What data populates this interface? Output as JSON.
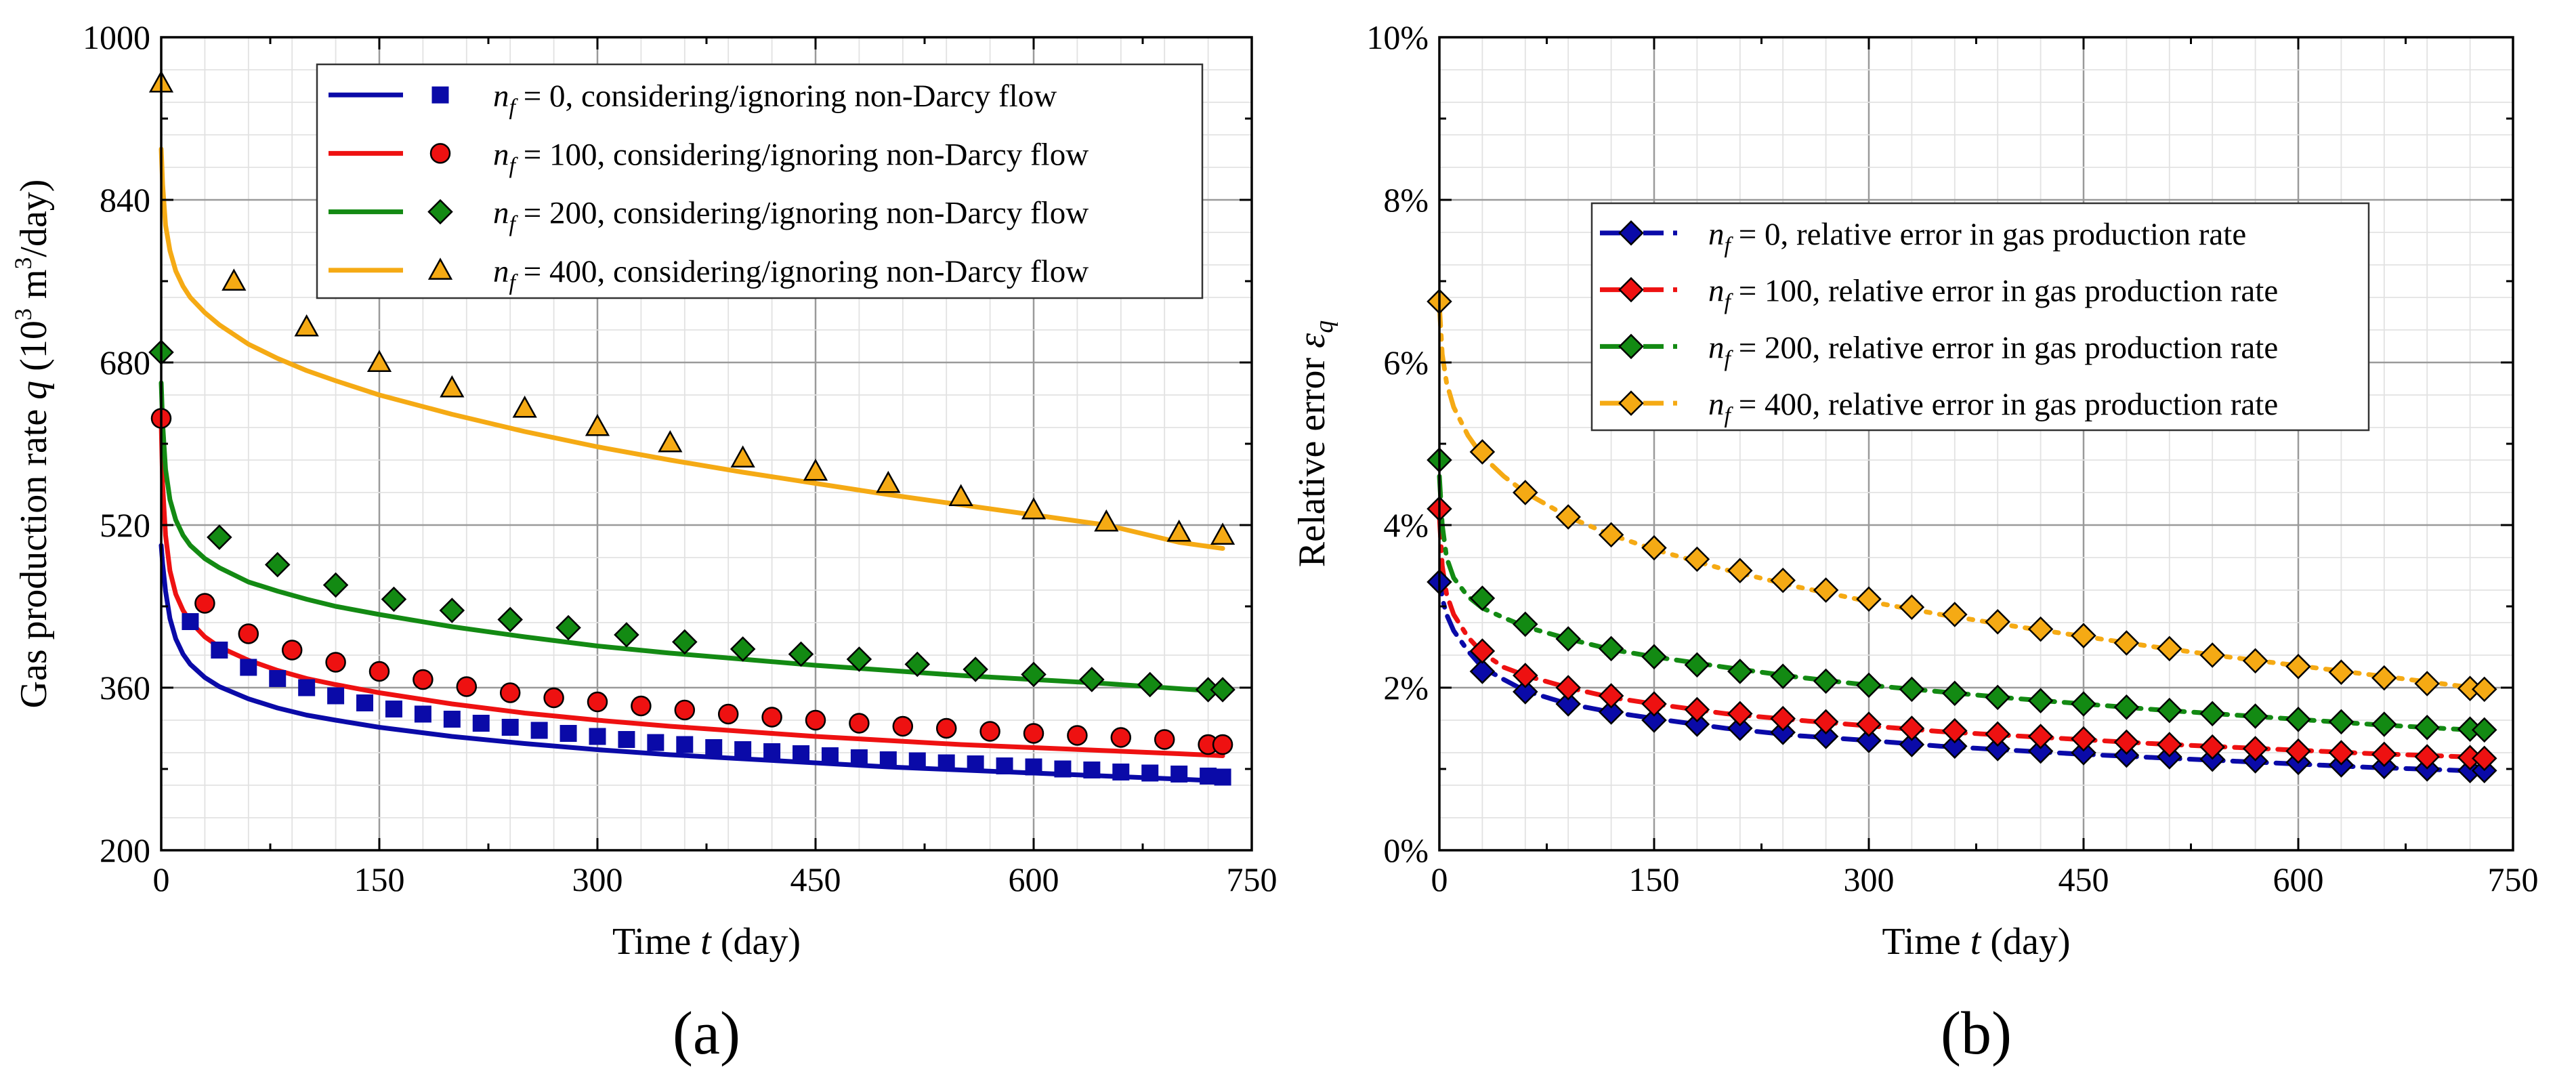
{
  "chart_data": [
    {
      "type": "line",
      "panel_label": "(a)",
      "xlabel": {
        "prefix": "Time ",
        "var": "t",
        "suffix": " (day)"
      },
      "ylabel": {
        "prefix": "Gas production rate ",
        "var": "q",
        "suffix": " (10",
        "sup": "3",
        "mid": " m",
        "sup2": "3",
        "end": "/day)"
      },
      "xlim": [
        0,
        750
      ],
      "ylim": [
        200,
        1000
      ],
      "xticks": [
        "0",
        "150",
        "300",
        "450",
        "600",
        "750"
      ],
      "yticks": [
        "200",
        "360",
        "520",
        "680",
        "840",
        "1000"
      ],
      "grid": true,
      "legend_position": "top-right",
      "series": [
        {
          "nf": "0",
          "legend_text": "= 0,     considering/ignoring non-Darcy flow",
          "color": "#0a0aa8",
          "marker": "square",
          "line_x": [
            0,
            1,
            3,
            6,
            10,
            15,
            20,
            30,
            40,
            60,
            80,
            100,
            120,
            150,
            200,
            250,
            300,
            350,
            400,
            450,
            500,
            550,
            600,
            650,
            700,
            730
          ],
          "line_y": [
            500,
            482,
            455,
            428,
            408,
            393,
            383,
            370,
            361,
            349,
            340,
            333,
            328,
            321,
            312,
            305,
            299,
            294,
            290,
            286,
            282,
            279,
            276,
            273,
            270,
            268
          ],
          "points_x": [
            20,
            40,
            60,
            80,
            100,
            120,
            140,
            160,
            180,
            200,
            220,
            240,
            260,
            280,
            300,
            320,
            340,
            360,
            380,
            400,
            420,
            440,
            460,
            480,
            500,
            520,
            540,
            560,
            580,
            600,
            620,
            640,
            660,
            680,
            700,
            720,
            730
          ],
          "points_y": [
            425,
            397,
            380,
            369,
            360,
            352,
            345,
            339,
            334,
            329,
            325,
            321,
            318,
            315,
            312,
            309,
            306,
            304,
            301,
            299,
            297,
            295,
            293,
            291,
            289,
            288,
            286,
            285,
            283,
            282,
            280,
            279,
            277,
            276,
            275,
            273,
            272
          ]
        },
        {
          "nf": "100",
          "legend_text": "= 100, considering/ignoring non-Darcy flow",
          "color": "#ee1111",
          "marker": "circle",
          "line_x": [
            0,
            1,
            3,
            6,
            10,
            15,
            20,
            30,
            40,
            60,
            80,
            100,
            120,
            150,
            200,
            250,
            300,
            350,
            400,
            450,
            500,
            550,
            600,
            650,
            700,
            730
          ],
          "line_y": [
            620,
            560,
            510,
            475,
            452,
            436,
            425,
            410,
            400,
            387,
            377,
            369,
            363,
            355,
            344,
            335,
            328,
            322,
            317,
            312,
            308,
            304,
            301,
            298,
            295,
            293
          ],
          "points_x": [
            0,
            30,
            60,
            90,
            120,
            150,
            180,
            210,
            240,
            270,
            300,
            330,
            360,
            390,
            420,
            450,
            480,
            510,
            540,
            570,
            600,
            630,
            660,
            690,
            720,
            730
          ],
          "points_y": [
            625,
            443,
            413,
            397,
            385,
            376,
            368,
            361,
            355,
            350,
            346,
            342,
            338,
            334,
            331,
            328,
            325,
            322,
            320,
            317,
            315,
            313,
            311,
            309,
            304,
            304
          ]
        },
        {
          "nf": "200",
          "legend_text": "= 200, considering/ignoring non-Darcy flow",
          "color": "#138a13",
          "marker": "diamond",
          "line_x": [
            0,
            1,
            3,
            6,
            10,
            15,
            20,
            30,
            40,
            60,
            80,
            100,
            120,
            150,
            200,
            250,
            300,
            350,
            400,
            450,
            500,
            550,
            600,
            650,
            700,
            730
          ],
          "line_y": [
            660,
            620,
            575,
            545,
            525,
            510,
            500,
            487,
            478,
            464,
            455,
            447,
            440,
            432,
            420,
            410,
            401,
            394,
            388,
            382,
            377,
            372,
            368,
            364,
            359,
            356
          ],
          "points_x": [
            0,
            40,
            80,
            120,
            160,
            200,
            240,
            280,
            320,
            360,
            400,
            440,
            480,
            520,
            560,
            600,
            640,
            680,
            720,
            730
          ],
          "points_y": [
            690,
            508,
            481,
            461,
            447,
            436,
            427,
            419,
            412,
            405,
            398,
            393,
            388,
            383,
            378,
            373,
            368,
            363,
            358,
            358
          ]
        },
        {
          "nf": "400",
          "legend_text": "= 400, considering/ignoring non-Darcy flow",
          "color": "#f5aa14",
          "marker": "triangle",
          "line_x": [
            0,
            1,
            3,
            6,
            10,
            15,
            20,
            30,
            40,
            60,
            80,
            100,
            120,
            150,
            200,
            250,
            300,
            350,
            400,
            450,
            500,
            550,
            600,
            650,
            700,
            730
          ],
          "line_y": [
            890,
            855,
            815,
            790,
            770,
            755,
            744,
            729,
            717,
            698,
            684,
            672,
            662,
            648,
            629,
            612,
            597,
            584,
            572,
            561,
            550,
            540,
            530,
            520,
            503,
            497
          ],
          "points_x": [
            0,
            50,
            100,
            150,
            200,
            250,
            300,
            350,
            400,
            450,
            500,
            550,
            600,
            650,
            700,
            730
          ],
          "points_y": [
            955,
            760,
            715,
            680,
            655,
            635,
            617,
            601,
            586,
            573,
            561,
            548,
            535,
            523,
            513,
            510
          ]
        }
      ]
    },
    {
      "type": "line",
      "panel_label": "(b)",
      "xlabel": {
        "prefix": "Time ",
        "var": "t",
        "suffix": " (day)"
      },
      "ylabel": {
        "prefix": "Relative error ",
        "var": "ε",
        "sub": "q"
      },
      "xlim": [
        0,
        750
      ],
      "ylim": [
        0,
        10
      ],
      "y_unit": "%",
      "xticks": [
        "0",
        "150",
        "300",
        "450",
        "600",
        "750"
      ],
      "yticks": [
        "0%",
        "2%",
        "4%",
        "6%",
        "8%",
        "10%"
      ],
      "grid": true,
      "legend_position": "upper-middle",
      "series": [
        {
          "nf": "0",
          "legend_text": "= 0,     relative error in gas production rate",
          "color": "#0a0aa8",
          "marker": "diamond",
          "line_x": [
            0,
            2,
            5,
            10,
            20,
            30,
            45,
            60,
            90,
            120,
            150,
            200,
            250,
            300,
            350,
            400,
            450,
            500,
            550,
            600,
            650,
            700,
            730
          ],
          "line_y": [
            3.4,
            3.1,
            2.9,
            2.7,
            2.45,
            2.25,
            2.1,
            1.96,
            1.8,
            1.7,
            1.62,
            1.5,
            1.41,
            1.35,
            1.28,
            1.23,
            1.18,
            1.14,
            1.1,
            1.06,
            1.02,
            0.99,
            0.97
          ],
          "points_x": [
            0,
            30,
            60,
            90,
            120,
            150,
            180,
            210,
            240,
            270,
            300,
            330,
            360,
            390,
            420,
            450,
            480,
            510,
            540,
            570,
            600,
            630,
            660,
            690,
            720,
            730
          ],
          "points_y": [
            3.3,
            2.2,
            1.95,
            1.8,
            1.7,
            1.6,
            1.55,
            1.5,
            1.45,
            1.4,
            1.35,
            1.3,
            1.28,
            1.25,
            1.22,
            1.2,
            1.17,
            1.15,
            1.12,
            1.1,
            1.08,
            1.05,
            1.03,
            1.0,
            0.98,
            0.98
          ]
        },
        {
          "nf": "100",
          "legend_text": "= 100, relative error in gas production rate",
          "color": "#ee1111",
          "marker": "diamond",
          "line_x": [
            0,
            2,
            5,
            10,
            20,
            30,
            45,
            60,
            90,
            120,
            150,
            200,
            250,
            300,
            350,
            400,
            450,
            500,
            550,
            600,
            650,
            700,
            730
          ],
          "line_y": [
            4.1,
            3.5,
            3.15,
            2.9,
            2.62,
            2.43,
            2.25,
            2.15,
            2.0,
            1.88,
            1.8,
            1.68,
            1.6,
            1.53,
            1.46,
            1.41,
            1.36,
            1.31,
            1.27,
            1.23,
            1.19,
            1.16,
            1.14
          ],
          "points_x": [
            0,
            30,
            60,
            90,
            120,
            150,
            180,
            210,
            240,
            270,
            300,
            330,
            360,
            390,
            420,
            450,
            480,
            510,
            540,
            570,
            600,
            630,
            660,
            690,
            720,
            730
          ],
          "points_y": [
            4.2,
            2.45,
            2.15,
            2.0,
            1.9,
            1.8,
            1.73,
            1.68,
            1.62,
            1.58,
            1.55,
            1.5,
            1.47,
            1.43,
            1.4,
            1.37,
            1.33,
            1.3,
            1.27,
            1.25,
            1.22,
            1.2,
            1.18,
            1.15,
            1.14,
            1.13
          ]
        },
        {
          "nf": "200",
          "legend_text": "= 200, relative error in gas production rate",
          "color": "#138a13",
          "marker": "diamond",
          "line_x": [
            0,
            2,
            5,
            10,
            20,
            30,
            45,
            60,
            90,
            120,
            150,
            200,
            250,
            300,
            350,
            400,
            450,
            500,
            550,
            600,
            650,
            700,
            730
          ],
          "line_y": [
            4.6,
            4.0,
            3.6,
            3.35,
            3.12,
            2.98,
            2.86,
            2.75,
            2.6,
            2.47,
            2.38,
            2.25,
            2.13,
            2.03,
            1.95,
            1.87,
            1.8,
            1.73,
            1.67,
            1.61,
            1.55,
            1.5,
            1.47
          ],
          "points_x": [
            0,
            30,
            60,
            90,
            120,
            150,
            180,
            210,
            240,
            270,
            300,
            330,
            360,
            390,
            420,
            450,
            480,
            510,
            540,
            570,
            600,
            630,
            660,
            690,
            720,
            730
          ],
          "points_y": [
            4.8,
            3.1,
            2.78,
            2.6,
            2.48,
            2.38,
            2.28,
            2.2,
            2.14,
            2.08,
            2.03,
            1.98,
            1.93,
            1.88,
            1.84,
            1.8,
            1.76,
            1.72,
            1.68,
            1.65,
            1.61,
            1.58,
            1.55,
            1.51,
            1.49,
            1.48
          ]
        },
        {
          "nf": "400",
          "legend_text": "= 400, relative error in gas production rate",
          "color": "#f5aa14",
          "marker": "diamond",
          "line_x": [
            0,
            2,
            5,
            10,
            20,
            30,
            45,
            60,
            90,
            120,
            150,
            200,
            250,
            300,
            350,
            400,
            450,
            500,
            550,
            600,
            650,
            700,
            730
          ],
          "line_y": [
            6.7,
            6.1,
            5.75,
            5.45,
            5.1,
            4.85,
            4.6,
            4.4,
            4.1,
            3.88,
            3.7,
            3.45,
            3.24,
            3.06,
            2.9,
            2.76,
            2.63,
            2.5,
            2.38,
            2.27,
            2.16,
            2.05,
            1.98
          ],
          "points_x": [
            0,
            30,
            60,
            90,
            120,
            150,
            180,
            210,
            240,
            270,
            300,
            330,
            360,
            390,
            420,
            450,
            480,
            510,
            540,
            570,
            600,
            630,
            660,
            690,
            720,
            730
          ],
          "points_y": [
            6.75,
            4.9,
            4.4,
            4.1,
            3.88,
            3.72,
            3.58,
            3.44,
            3.32,
            3.2,
            3.09,
            2.99,
            2.9,
            2.81,
            2.72,
            2.64,
            2.55,
            2.48,
            2.4,
            2.33,
            2.26,
            2.19,
            2.12,
            2.05,
            1.99,
            1.98
          ]
        }
      ]
    }
  ]
}
